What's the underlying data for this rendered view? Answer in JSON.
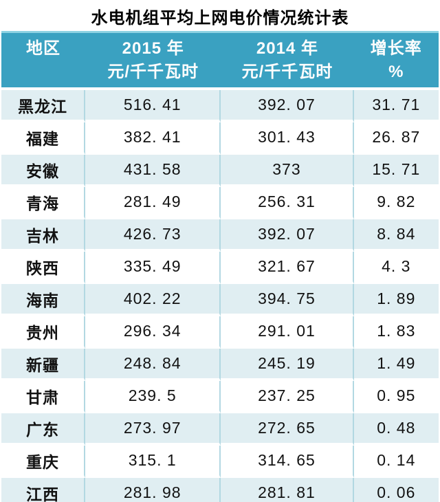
{
  "title": "水电机组平均上网电价情况统计表",
  "table": {
    "columns": [
      {
        "line1": "地区",
        "line2": ""
      },
      {
        "line1": "2015 年",
        "line2": "元/千千瓦时"
      },
      {
        "line1": "2014 年",
        "line2": "元/千千瓦时"
      },
      {
        "line1": "增长率",
        "line2": "%"
      }
    ],
    "rows": [
      {
        "cells": [
          "黑龙江",
          "516. 41",
          "392. 07",
          "31. 71"
        ]
      },
      {
        "cells": [
          "福建",
          "382. 41",
          "301. 43",
          "26. 87"
        ]
      },
      {
        "cells": [
          "安徽",
          "431. 58",
          "373",
          "15. 71"
        ]
      },
      {
        "cells": [
          "青海",
          "281. 49",
          "256. 31",
          "9. 82"
        ]
      },
      {
        "cells": [
          "吉林",
          "426. 73",
          "392. 07",
          "8. 84"
        ]
      },
      {
        "cells": [
          "陕西",
          "335. 49",
          "321. 67",
          "4. 3"
        ]
      },
      {
        "cells": [
          "海南",
          "402. 22",
          "394. 75",
          "1. 89"
        ]
      },
      {
        "cells": [
          "贵州",
          "296. 34",
          "291. 01",
          "1. 83"
        ]
      },
      {
        "cells": [
          "新疆",
          "248. 84",
          "245. 19",
          "1. 49"
        ]
      },
      {
        "cells": [
          "甘肃",
          "239. 5",
          "237. 25",
          "0. 95"
        ]
      },
      {
        "cells": [
          "广东",
          "273. 97",
          "272. 65",
          "0. 48"
        ]
      },
      {
        "cells": [
          "重庆",
          "315. 1",
          "314. 65",
          "0. 14"
        ]
      },
      {
        "cells": [
          "江西",
          "281. 98",
          "281. 81",
          "0. 06"
        ]
      }
    ]
  },
  "chart_data": {
    "type": "table",
    "title": "水电机组平均上网电价情况统计表",
    "columns": [
      "地区",
      "2015年 元/千千瓦时",
      "2014年 元/千千瓦时",
      "增长率 %"
    ],
    "rows": [
      [
        "黑龙江",
        516.41,
        392.07,
        31.71
      ],
      [
        "福建",
        382.41,
        301.43,
        26.87
      ],
      [
        "安徽",
        431.58,
        373,
        15.71
      ],
      [
        "青海",
        281.49,
        256.31,
        9.82
      ],
      [
        "吉林",
        426.73,
        392.07,
        8.84
      ],
      [
        "陕西",
        335.49,
        321.67,
        4.3
      ],
      [
        "海南",
        402.22,
        394.75,
        1.89
      ],
      [
        "贵州",
        296.34,
        291.01,
        1.83
      ],
      [
        "新疆",
        248.84,
        245.19,
        1.49
      ],
      [
        "甘肃",
        239.5,
        237.25,
        0.95
      ],
      [
        "广东",
        273.97,
        272.65,
        0.48
      ],
      [
        "重庆",
        315.1,
        314.65,
        0.14
      ],
      [
        "江西",
        281.98,
        281.81,
        0.06
      ]
    ]
  },
  "colors": {
    "header_bg": "#3AA1C1",
    "header_top_edge": "#8ED2E2",
    "header_text": "#FDFDFD",
    "row_alt_bg": "#E0EEF2",
    "row_bg": "#FFFFFF",
    "grid_line": "#B2D8E2",
    "title_text": "#000000",
    "body_text": "#121212"
  }
}
